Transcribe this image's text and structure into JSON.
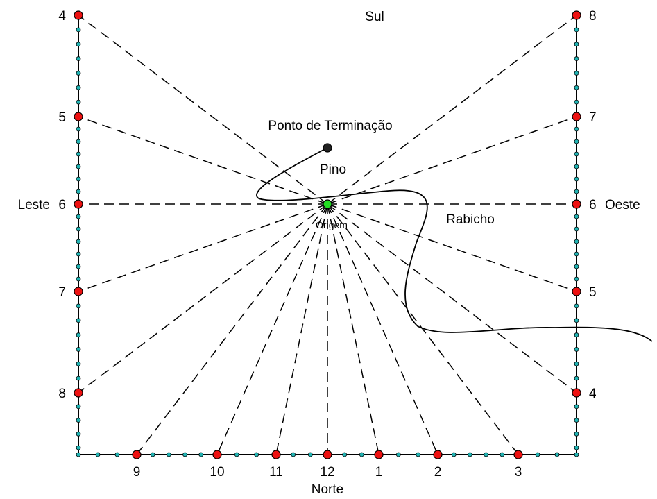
{
  "directions": {
    "south": "Sul",
    "north": "Norte",
    "east": "Leste",
    "west": "Oeste"
  },
  "labels": {
    "termination_point": "Ponto de Terminação",
    "gnomon": "Pino",
    "origin": "Origem",
    "tail": "Rabicho"
  },
  "hour_marks": {
    "left": [
      "4",
      "5",
      "6",
      "7",
      "8"
    ],
    "right": [
      "8",
      "7",
      "6",
      "5",
      "4"
    ],
    "bottom": [
      "9",
      "10",
      "11",
      "12",
      "1",
      "2",
      "3"
    ]
  },
  "colors": {
    "hour_marker": "#ee1111",
    "minor_marker": "#22b3b3",
    "origin_marker": "#22dd22",
    "pin_marker": "#222222",
    "frame": "#000000"
  }
}
